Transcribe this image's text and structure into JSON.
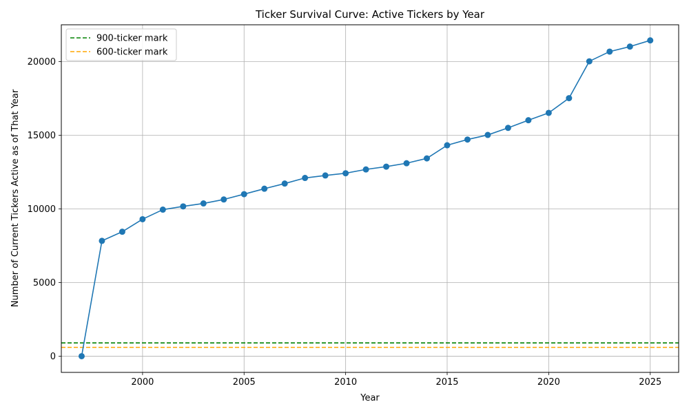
{
  "chart_data": {
    "type": "line",
    "title": "Ticker Survival Curve: Active Tickers by Year",
    "xlabel": "Year",
    "ylabel": "Number of Current Tickers Active as of That Year",
    "xlim": [
      1996,
      2026.4
    ],
    "ylim": [
      -1100,
      22500
    ],
    "x_ticks": [
      2000,
      2005,
      2010,
      2015,
      2020,
      2025
    ],
    "y_ticks": [
      0,
      5000,
      10000,
      15000,
      20000
    ],
    "grid": true,
    "legend_position": "top-left",
    "series": [
      {
        "color": "#1f77b4",
        "marker": "circle",
        "x": [
          1997,
          1998,
          1999,
          2000,
          2001,
          2002,
          2003,
          2004,
          2005,
          2006,
          2007,
          2008,
          2009,
          2010,
          2011,
          2012,
          2013,
          2014,
          2015,
          2016,
          2017,
          2018,
          2019,
          2020,
          2021,
          2022,
          2023,
          2024,
          2025
        ],
        "y": [
          0,
          7830,
          8450,
          9300,
          9950,
          10170,
          10370,
          10640,
          11000,
          11370,
          11720,
          12100,
          12270,
          12420,
          12680,
          12870,
          13100,
          13430,
          14320,
          14710,
          15020,
          15500,
          16020,
          16520,
          17520,
          20020,
          20680,
          21020,
          21440
        ]
      }
    ],
    "reference_lines": [
      {
        "name": "900-ticker mark",
        "y": 900,
        "color": "#008000",
        "style": "dashed"
      },
      {
        "name": "600-ticker mark",
        "y": 600,
        "color": "#ffa500",
        "style": "dashed"
      }
    ]
  }
}
